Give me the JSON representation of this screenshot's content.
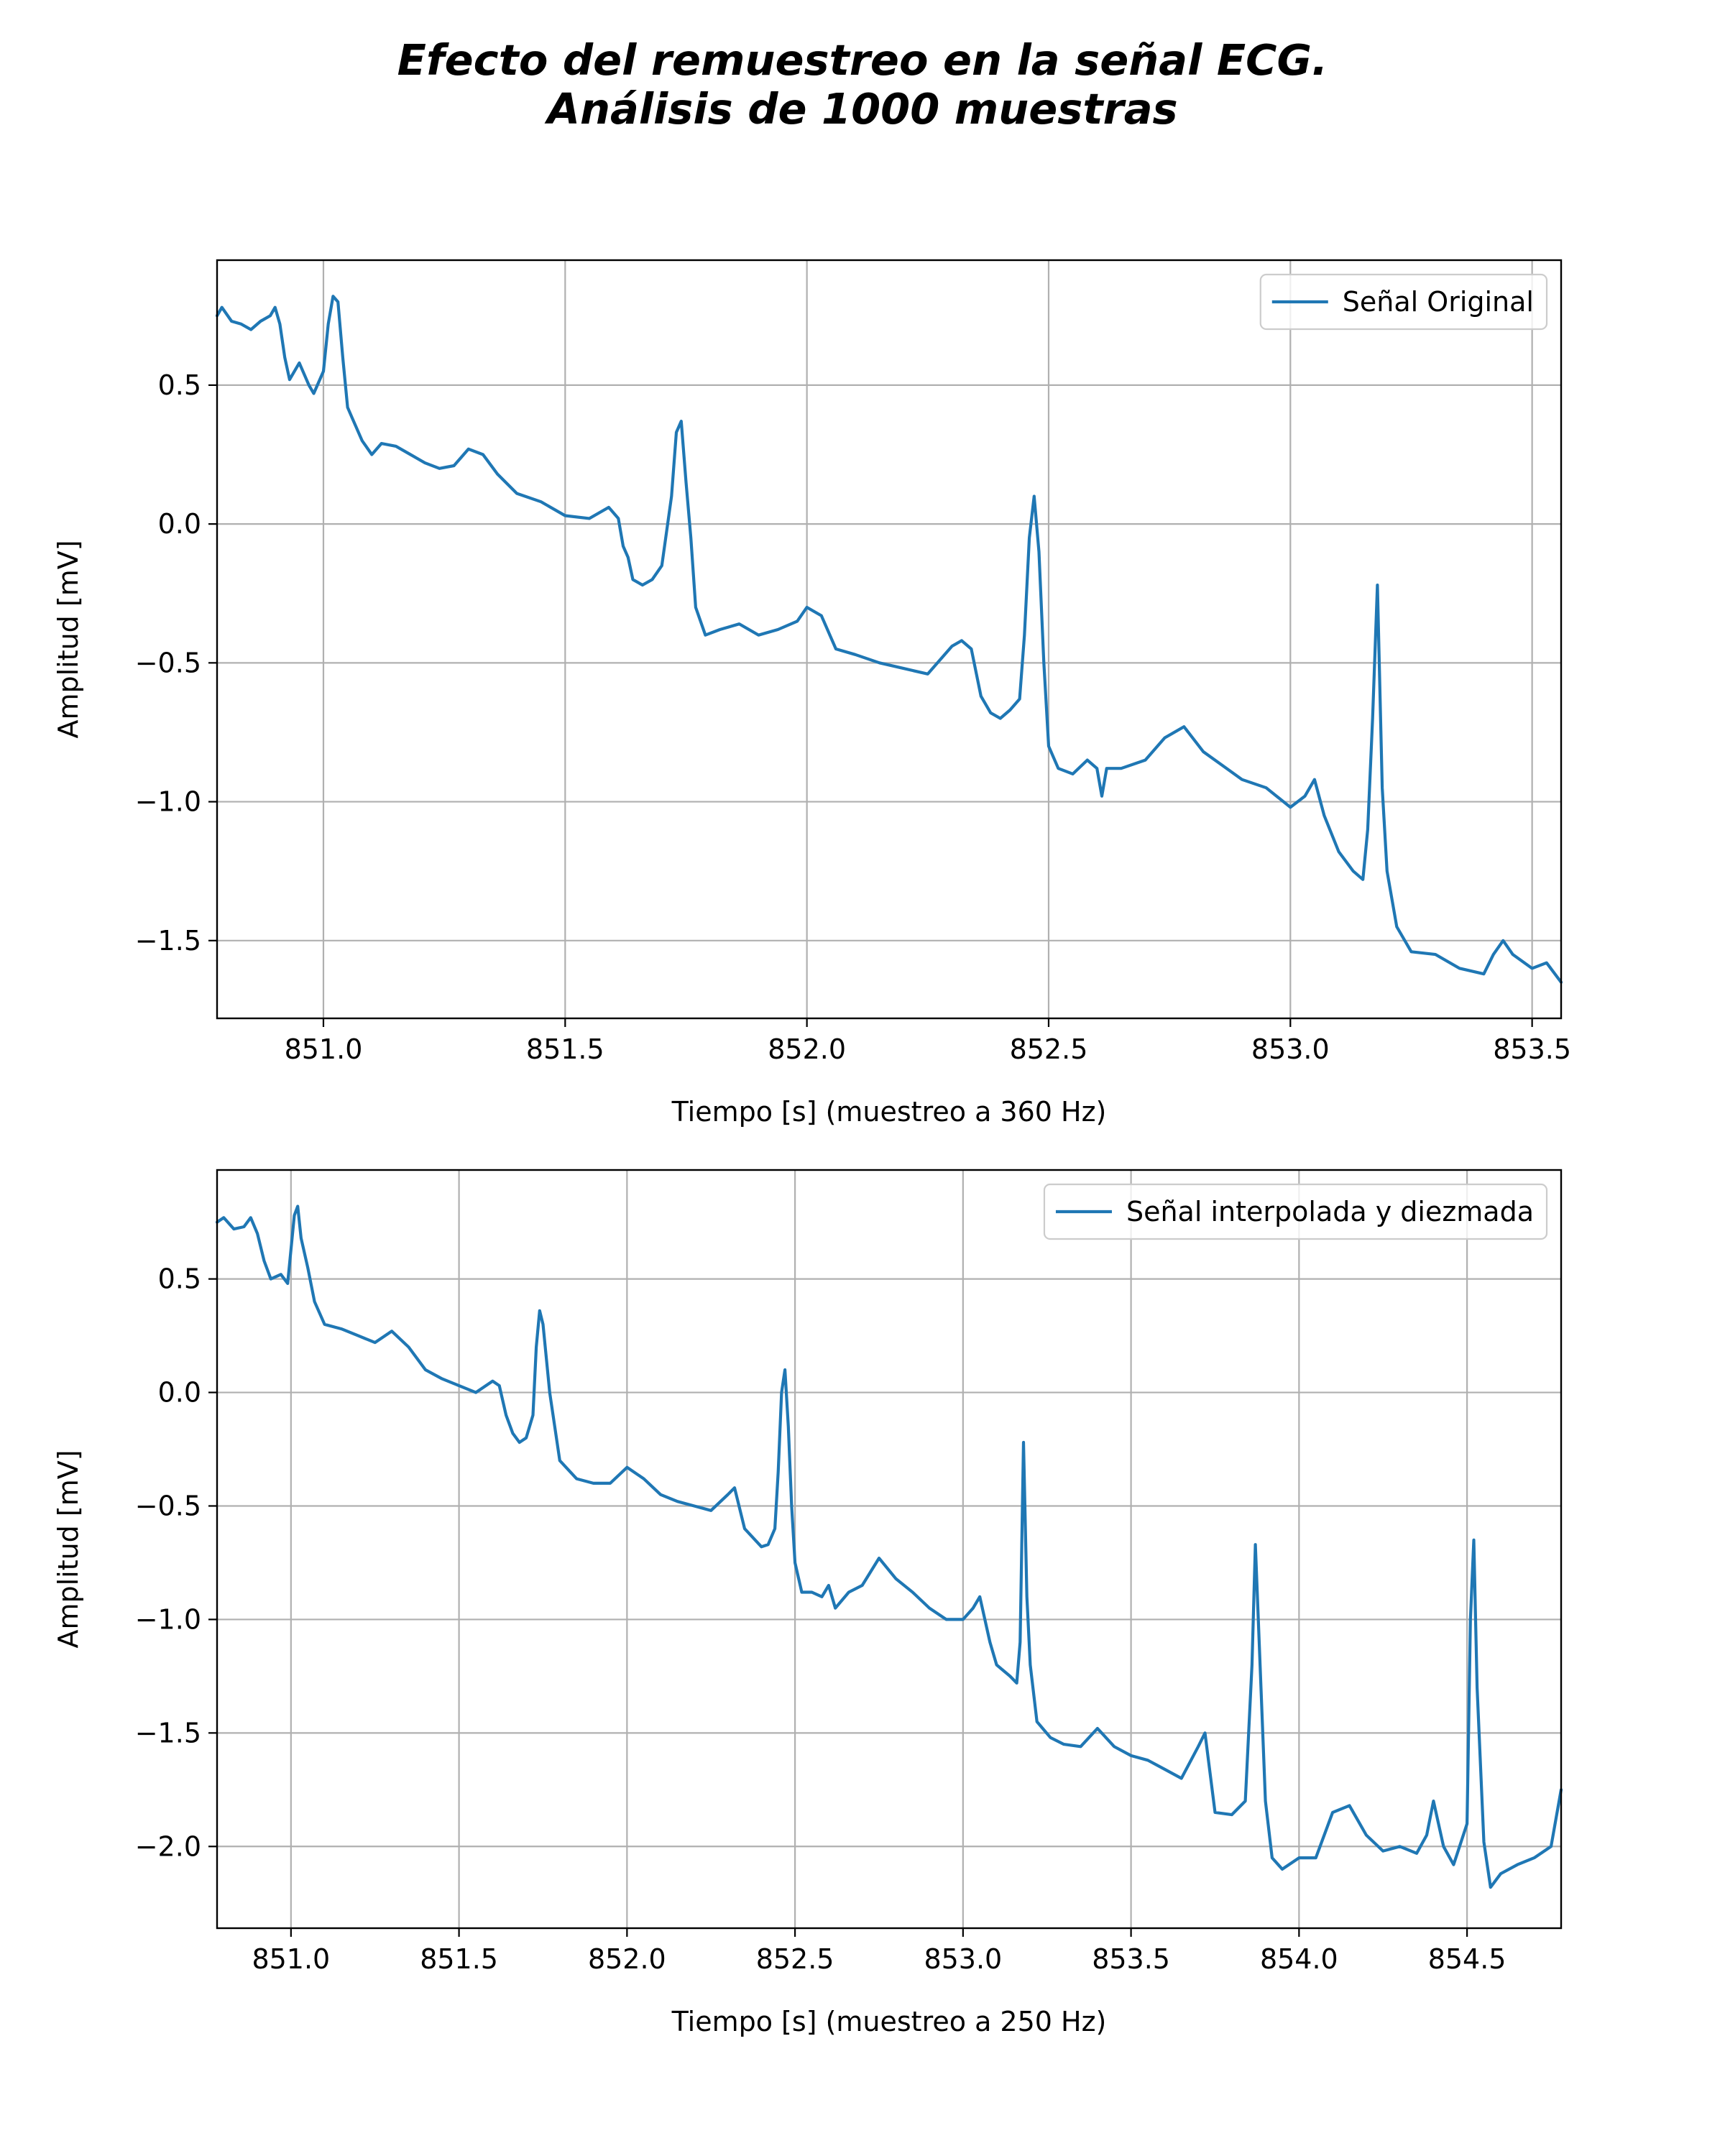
{
  "suptitle": [
    "Efecto del remuestreo en la señal ECG.",
    "Análisis de 1000 muestras"
  ],
  "colors": {
    "series": "#1f77b4",
    "grid": "#b0b0b0",
    "frame": "#000000"
  },
  "chart_data": [
    {
      "type": "line",
      "xlabel": "Tiempo [s] (muestreo a 360 Hz)",
      "ylabel": "Amplitud [mV]",
      "xlim": [
        850.78,
        853.56
      ],
      "ylim": [
        -1.78,
        0.95
      ],
      "xticks": [
        851.0,
        851.5,
        852.0,
        852.5,
        853.0,
        853.5
      ],
      "xtick_labels": [
        "851.0",
        "851.5",
        "852.0",
        "852.5",
        "853.0",
        "853.5"
      ],
      "yticks": [
        0.5,
        0.0,
        -0.5,
        -1.0,
        -1.5
      ],
      "ytick_labels": [
        "0.5",
        "0.0",
        "−0.5",
        "−1.0",
        "−1.5"
      ],
      "grid": true,
      "legend_position": "upper right",
      "series": [
        {
          "name": "Señal Original",
          "x": [
            850.78,
            850.79,
            850.81,
            850.83,
            850.85,
            850.87,
            850.89,
            850.9,
            850.91,
            850.92,
            850.93,
            850.95,
            850.97,
            850.98,
            851.0,
            851.01,
            851.02,
            851.03,
            851.04,
            851.05,
            851.06,
            851.08,
            851.1,
            851.12,
            851.15,
            851.18,
            851.21,
            851.24,
            851.27,
            851.3,
            851.33,
            851.36,
            851.4,
            851.45,
            851.5,
            851.55,
            851.59,
            851.61,
            851.62,
            851.63,
            851.64,
            851.66,
            851.68,
            851.7,
            851.72,
            851.73,
            851.74,
            851.75,
            851.76,
            851.77,
            851.79,
            851.82,
            851.86,
            851.9,
            851.94,
            851.98,
            852.0,
            852.03,
            852.06,
            852.1,
            852.15,
            852.2,
            852.25,
            852.3,
            852.32,
            852.34,
            852.36,
            852.38,
            852.4,
            852.42,
            852.44,
            852.45,
            852.46,
            852.47,
            852.48,
            852.49,
            852.5,
            852.52,
            852.55,
            852.58,
            852.6,
            852.61,
            852.62,
            852.65,
            852.7,
            852.74,
            852.78,
            852.82,
            852.86,
            852.9,
            852.95,
            853.0,
            853.03,
            853.05,
            853.07,
            853.1,
            853.13,
            853.15,
            853.16,
            853.17,
            853.18,
            853.19,
            853.2,
            853.22,
            853.25,
            853.3,
            853.35,
            853.4,
            853.42,
            853.44,
            853.46,
            853.5,
            853.53,
            853.56
          ],
          "values": [
            0.75,
            0.78,
            0.73,
            0.72,
            0.7,
            0.73,
            0.75,
            0.78,
            0.72,
            0.6,
            0.52,
            0.58,
            0.5,
            0.47,
            0.55,
            0.72,
            0.82,
            0.8,
            0.6,
            0.42,
            0.38,
            0.3,
            0.25,
            0.29,
            0.28,
            0.25,
            0.22,
            0.2,
            0.21,
            0.27,
            0.25,
            0.18,
            0.11,
            0.08,
            0.03,
            0.02,
            0.06,
            0.02,
            -0.08,
            -0.12,
            -0.2,
            -0.22,
            -0.2,
            -0.15,
            0.1,
            0.33,
            0.37,
            0.15,
            -0.05,
            -0.3,
            -0.4,
            -0.38,
            -0.36,
            -0.4,
            -0.38,
            -0.35,
            -0.3,
            -0.33,
            -0.45,
            -0.47,
            -0.5,
            -0.52,
            -0.54,
            -0.44,
            -0.42,
            -0.45,
            -0.62,
            -0.68,
            -0.7,
            -0.67,
            -0.63,
            -0.4,
            -0.05,
            0.1,
            -0.1,
            -0.5,
            -0.8,
            -0.88,
            -0.9,
            -0.85,
            -0.88,
            -0.98,
            -0.88,
            -0.88,
            -0.85,
            -0.77,
            -0.73,
            -0.82,
            -0.87,
            -0.92,
            -0.95,
            -1.02,
            -0.98,
            -0.92,
            -1.05,
            -1.18,
            -1.25,
            -1.28,
            -1.1,
            -0.7,
            -0.22,
            -0.95,
            -1.25,
            -1.45,
            -1.54,
            -1.55,
            -1.6,
            -1.62,
            -1.55,
            -1.5,
            -1.55,
            -1.6,
            -1.58,
            -1.65
          ]
        }
      ]
    },
    {
      "type": "line",
      "xlabel": "Tiempo [s] (muestreo a 250 Hz)",
      "ylabel": "Amplitud [mV]",
      "xlim": [
        850.78,
        854.78
      ],
      "ylim": [
        -2.36,
        0.98
      ],
      "xticks": [
        851.0,
        851.5,
        852.0,
        852.5,
        853.0,
        853.5,
        854.0,
        854.5
      ],
      "xtick_labels": [
        "851.0",
        "851.5",
        "852.0",
        "852.5",
        "853.0",
        "853.5",
        "854.0",
        "854.5"
      ],
      "yticks": [
        0.5,
        0.0,
        -0.5,
        -1.0,
        -1.5,
        -2.0
      ],
      "ytick_labels": [
        "0.5",
        "0.0",
        "−0.5",
        "−1.0",
        "−1.5",
        "−2.0"
      ],
      "grid": true,
      "legend_position": "upper right",
      "series": [
        {
          "name": "Señal interpolada y diezmada",
          "x": [
            850.78,
            850.8,
            850.83,
            850.86,
            850.88,
            850.9,
            850.92,
            850.94,
            850.97,
            850.99,
            851.01,
            851.02,
            851.03,
            851.05,
            851.07,
            851.1,
            851.15,
            851.2,
            851.25,
            851.3,
            851.35,
            851.4,
            851.45,
            851.5,
            851.55,
            851.6,
            851.62,
            851.64,
            851.66,
            851.68,
            851.7,
            851.72,
            851.73,
            851.74,
            851.75,
            851.77,
            851.8,
            851.85,
            851.9,
            851.95,
            852.0,
            852.05,
            852.1,
            852.15,
            852.2,
            852.25,
            852.3,
            852.32,
            852.35,
            852.4,
            852.42,
            852.44,
            852.45,
            852.46,
            852.47,
            852.48,
            852.49,
            852.5,
            852.52,
            852.55,
            852.58,
            852.6,
            852.62,
            852.66,
            852.7,
            852.75,
            852.8,
            852.85,
            852.9,
            852.95,
            853.0,
            853.03,
            853.05,
            853.08,
            853.1,
            853.14,
            853.16,
            853.17,
            853.18,
            853.19,
            853.2,
            853.22,
            853.26,
            853.3,
            853.35,
            853.4,
            853.45,
            853.5,
            853.55,
            853.6,
            853.65,
            853.7,
            853.72,
            853.75,
            853.8,
            853.84,
            853.86,
            853.87,
            853.88,
            853.9,
            853.92,
            853.95,
            854.0,
            854.05,
            854.1,
            854.15,
            854.2,
            854.25,
            854.3,
            854.35,
            854.38,
            854.4,
            854.43,
            854.46,
            854.5,
            854.51,
            854.52,
            854.53,
            854.55,
            854.57,
            854.6,
            854.65,
            854.7,
            854.75,
            854.78
          ],
          "values": [
            0.75,
            0.77,
            0.72,
            0.73,
            0.77,
            0.7,
            0.58,
            0.5,
            0.52,
            0.48,
            0.78,
            0.82,
            0.68,
            0.55,
            0.4,
            0.3,
            0.28,
            0.25,
            0.22,
            0.27,
            0.2,
            0.1,
            0.06,
            0.03,
            0.0,
            0.05,
            0.03,
            -0.1,
            -0.18,
            -0.22,
            -0.2,
            -0.1,
            0.2,
            0.36,
            0.3,
            0.0,
            -0.3,
            -0.38,
            -0.4,
            -0.4,
            -0.33,
            -0.38,
            -0.45,
            -0.48,
            -0.5,
            -0.52,
            -0.45,
            -0.42,
            -0.6,
            -0.68,
            -0.67,
            -0.6,
            -0.35,
            0.0,
            0.1,
            -0.15,
            -0.5,
            -0.75,
            -0.88,
            -0.88,
            -0.9,
            -0.85,
            -0.95,
            -0.88,
            -0.85,
            -0.73,
            -0.82,
            -0.88,
            -0.95,
            -1.0,
            -1.0,
            -0.95,
            -0.9,
            -1.1,
            -1.2,
            -1.25,
            -1.28,
            -1.1,
            -0.22,
            -0.9,
            -1.2,
            -1.45,
            -1.52,
            -1.55,
            -1.56,
            -1.48,
            -1.56,
            -1.6,
            -1.62,
            -1.66,
            -1.7,
            -1.56,
            -1.5,
            -1.85,
            -1.86,
            -1.8,
            -1.2,
            -0.67,
            -1.05,
            -1.8,
            -2.05,
            -2.1,
            -2.05,
            -2.05,
            -1.85,
            -1.82,
            -1.95,
            -2.02,
            -2.0,
            -2.03,
            -1.95,
            -1.8,
            -2.0,
            -2.08,
            -1.9,
            -1.0,
            -0.65,
            -1.3,
            -1.98,
            -2.18,
            -2.12,
            -2.08,
            -2.05,
            -2.0,
            -1.75
          ]
        }
      ]
    }
  ]
}
